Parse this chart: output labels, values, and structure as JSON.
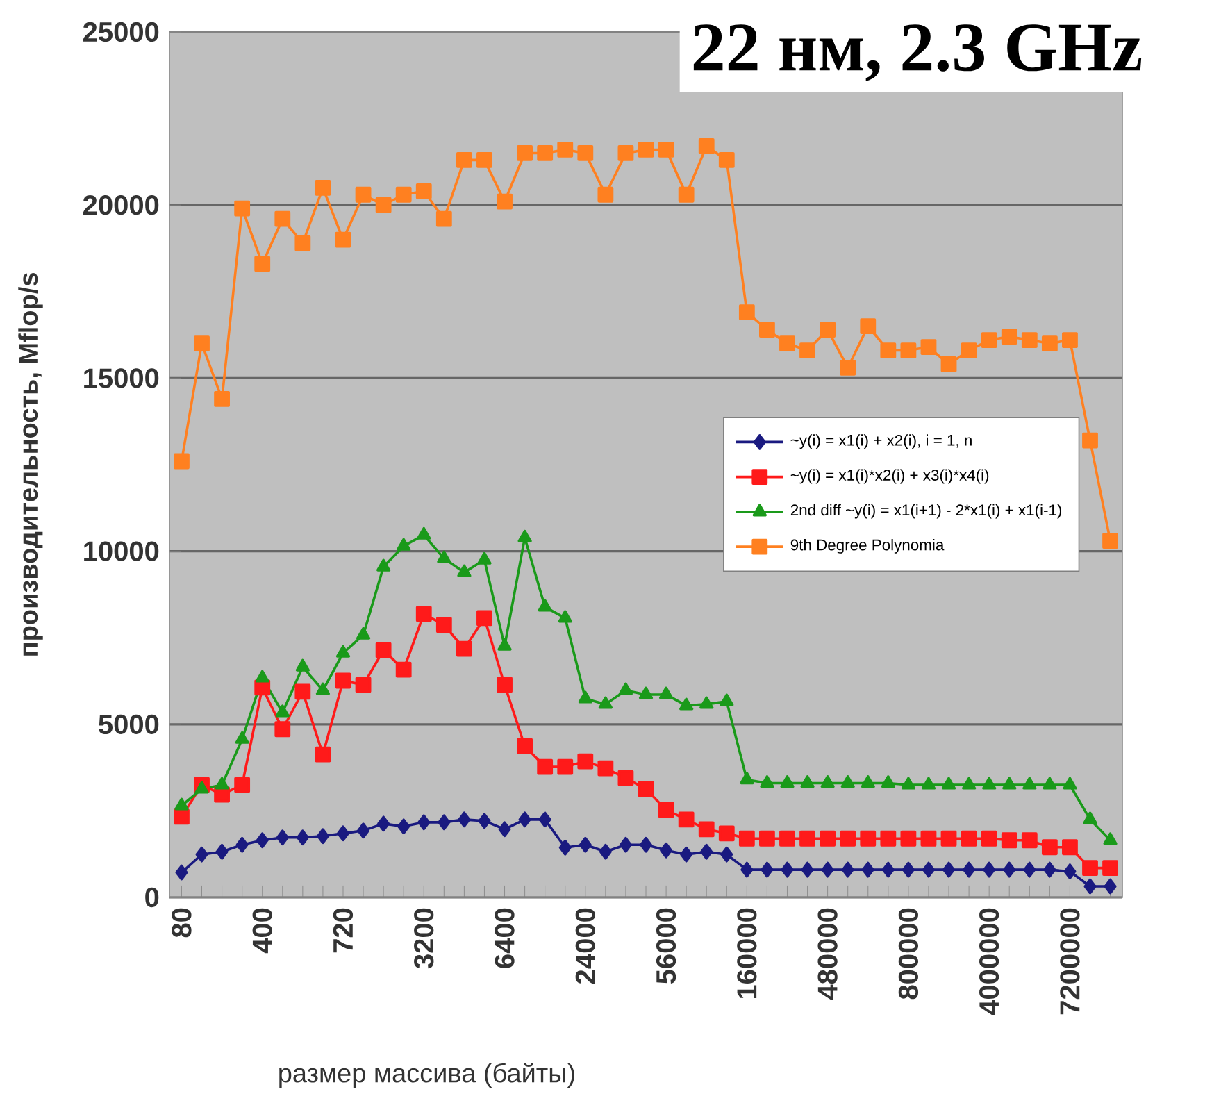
{
  "chart_data": {
    "type": "line",
    "title": "22 нм, 2.3 GHz",
    "xlabel": "размер массива (байты)",
    "ylabel": "производительность, Mflop/s",
    "categories": [
      "80",
      null,
      null,
      null,
      "400",
      null,
      null,
      null,
      "720",
      null,
      null,
      null,
      "3200",
      null,
      null,
      null,
      "6400",
      null,
      null,
      null,
      "24000",
      null,
      null,
      null,
      "56000",
      null,
      null,
      null,
      "160000",
      null,
      null,
      null,
      "480000",
      null,
      null,
      null,
      "800000",
      null,
      null,
      null,
      "4000000",
      null,
      null,
      null,
      "7200000",
      null,
      null
    ],
    "series": [
      {
        "name": "~y(i) = x1(i) + x2(i), i = 1, n",
        "color": "#1a1a80",
        "marker": "diamond",
        "values": [
          720,
          1240,
          1320,
          1520,
          1650,
          1730,
          1730,
          1770,
          1850,
          1930,
          2130,
          2050,
          2170,
          2170,
          2250,
          2210,
          1970,
          2250,
          2250,
          1440,
          1520,
          1320,
          1520,
          1520,
          1360,
          1240,
          1320,
          1240,
          800,
          800,
          800,
          800,
          800,
          800,
          800,
          800,
          800,
          800,
          800,
          800,
          800,
          800,
          800,
          800,
          750,
          320,
          320
        ]
      },
      {
        "name": "~y(i) = x1(i)*x2(i) + x3(i)*x4(i)",
        "color": "#ff1a1a",
        "marker": "square",
        "values": [
          2330,
          3250,
          2970,
          3250,
          6060,
          4860,
          5940,
          4130,
          6260,
          6140,
          7140,
          6580,
          8190,
          7870,
          7180,
          8070,
          6140,
          4370,
          3770,
          3770,
          3930,
          3730,
          3450,
          3130,
          2530,
          2250,
          1970,
          1850,
          1700,
          1700,
          1700,
          1700,
          1700,
          1700,
          1700,
          1700,
          1700,
          1700,
          1700,
          1700,
          1700,
          1650,
          1650,
          1450,
          1450,
          850,
          850
        ]
      },
      {
        "name": "2nd diff ~y(i) = x1(i+1) - 2*x1(i) + x1(i-1)",
        "color": "#1a9a1a",
        "marker": "triangle",
        "values": [
          2650,
          3130,
          3250,
          4570,
          6340,
          5340,
          6660,
          5980,
          7060,
          7580,
          9550,
          10150,
          10470,
          9790,
          9390,
          9750,
          7260,
          10390,
          8390,
          8070,
          5740,
          5580,
          5980,
          5860,
          5860,
          5540,
          5580,
          5660,
          3400,
          3300,
          3300,
          3300,
          3300,
          3300,
          3300,
          3300,
          3250,
          3250,
          3250,
          3250,
          3250,
          3250,
          3250,
          3250,
          3250,
          2250,
          1650
        ]
      },
      {
        "name": "9th Degree Polynomia",
        "color": "#ff8020",
        "marker": "square",
        "values": [
          12600,
          16000,
          14400,
          19900,
          18300,
          19600,
          18900,
          20500,
          19000,
          20300,
          20000,
          20300,
          20400,
          19600,
          21300,
          21300,
          20100,
          21500,
          21500,
          21600,
          21500,
          20300,
          21500,
          21600,
          21600,
          20300,
          21700,
          21300,
          16900,
          16400,
          16000,
          15800,
          16400,
          15300,
          16500,
          15800,
          15800,
          15900,
          15400,
          15800,
          16100,
          16200,
          16100,
          16000,
          16100,
          13200,
          10300
        ]
      }
    ],
    "ylim": [
      0,
      25000
    ],
    "yticks": [
      0,
      5000,
      10000,
      15000,
      20000,
      25000
    ],
    "grid": "y",
    "legend": "center right"
  }
}
